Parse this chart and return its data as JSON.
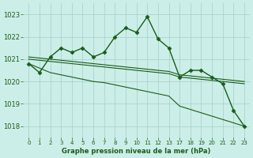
{
  "title": "Graphe pression niveau de la mer (hPa)",
  "background_color": "#cceee8",
  "grid_color": "#aad4cc",
  "line_color": "#1a5c1a",
  "ylim": [
    1017.5,
    1023.5
  ],
  "yticks": [
    1018,
    1019,
    1020,
    1021,
    1022,
    1023
  ],
  "x_positions": [
    0,
    1,
    2,
    3,
    4,
    5,
    6,
    7,
    8,
    9,
    10,
    11,
    12,
    13,
    17,
    18,
    19,
    20,
    21,
    22,
    23
  ],
  "x_labels": [
    "0",
    "1",
    "2",
    "3",
    "4",
    "5",
    "6",
    "7",
    "8",
    "9",
    "10",
    "11",
    "12",
    "13",
    "17",
    "18",
    "19",
    "20",
    "21",
    "22",
    "23"
  ],
  "series": [
    {
      "x": [
        0,
        1,
        2,
        3,
        4,
        5,
        6,
        7,
        8,
        9,
        10,
        11,
        12,
        13,
        17,
        18,
        19,
        20,
        21,
        22,
        23
      ],
      "y": [
        1020.8,
        1020.4,
        1021.1,
        1021.5,
        1021.3,
        1021.5,
        1021.1,
        1021.3,
        1022.0,
        1022.4,
        1022.2,
        1022.9,
        1021.9,
        1021.5,
        1020.2,
        1020.5,
        1020.5,
        1020.2,
        1019.9,
        1018.7,
        1018.0
      ],
      "marker": "D",
      "markersize": 2.5,
      "linewidth": 1.0
    },
    {
      "x": [
        0,
        1,
        2,
        3,
        4,
        5,
        6,
        7,
        8,
        9,
        10,
        11,
        12,
        13,
        17,
        18,
        19,
        20,
        21,
        22,
        23
      ],
      "y": [
        1021.0,
        1020.95,
        1020.9,
        1020.85,
        1020.8,
        1020.75,
        1020.7,
        1020.65,
        1020.6,
        1020.55,
        1020.5,
        1020.45,
        1020.4,
        1020.35,
        1020.2,
        1020.15,
        1020.1,
        1020.05,
        1020.0,
        1019.95,
        1019.9
      ],
      "marker": null,
      "markersize": 0,
      "linewidth": 0.8
    },
    {
      "x": [
        0,
        1,
        2,
        3,
        4,
        5,
        6,
        7,
        8,
        9,
        10,
        11,
        12,
        13,
        17,
        18,
        19,
        20,
        21,
        22,
        23
      ],
      "y": [
        1021.1,
        1021.05,
        1021.0,
        1020.95,
        1020.9,
        1020.85,
        1020.8,
        1020.75,
        1020.7,
        1020.65,
        1020.6,
        1020.55,
        1020.5,
        1020.45,
        1020.3,
        1020.25,
        1020.2,
        1020.15,
        1020.1,
        1020.05,
        1020.0
      ],
      "marker": null,
      "markersize": 0,
      "linewidth": 0.8
    },
    {
      "x": [
        0,
        1,
        2,
        3,
        4,
        5,
        6,
        7,
        8,
        9,
        10,
        11,
        12,
        13,
        17,
        18,
        19,
        20,
        21,
        22,
        23
      ],
      "y": [
        1020.8,
        1020.6,
        1020.4,
        1020.3,
        1020.2,
        1020.1,
        1020.0,
        1019.95,
        1019.85,
        1019.75,
        1019.65,
        1019.55,
        1019.45,
        1019.35,
        1018.9,
        1018.75,
        1018.6,
        1018.45,
        1018.3,
        1018.15,
        1018.0
      ],
      "marker": null,
      "markersize": 0,
      "linewidth": 0.8
    }
  ]
}
